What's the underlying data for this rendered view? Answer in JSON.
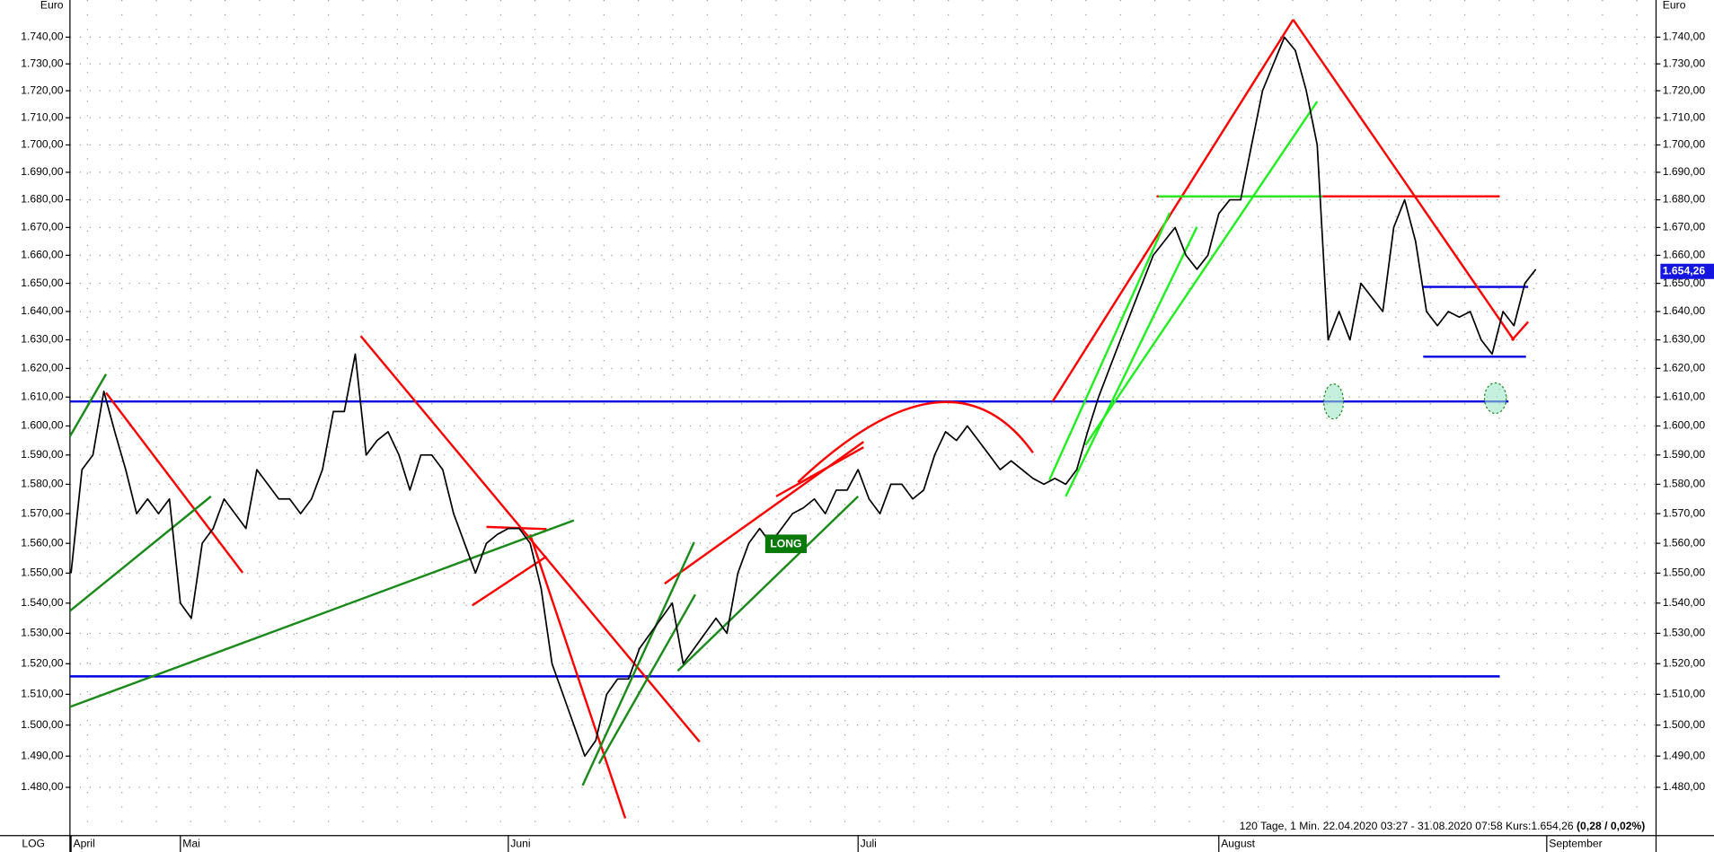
{
  "chart_data": {
    "type": "line",
    "unit": "Euro",
    "scale_label": "LOG",
    "log_scale": true,
    "info": "120 Tage, 1 Min. 22.04.2020 03:27 - 31.08.2020 07:58 Kurs:1.654,26 ",
    "info_change": "(0,28 / 0,02%)",
    "annotation": "LONG",
    "current_value": 1654.26,
    "current_value_label": "1.654,26",
    "color": "#000000",
    "grid": true,
    "ylim": [
      1465,
      1754
    ],
    "yticks": [
      {
        "value": 1480,
        "label": "1.480,00"
      },
      {
        "value": 1490,
        "label": "1.490,00"
      },
      {
        "value": 1500,
        "label": "1.500,00"
      },
      {
        "value": 1510,
        "label": "1.510,00"
      },
      {
        "value": 1520,
        "label": "1.520,00"
      },
      {
        "value": 1530,
        "label": "1.530,00"
      },
      {
        "value": 1540,
        "label": "1.540,00"
      },
      {
        "value": 1550,
        "label": "1.550,00"
      },
      {
        "value": 1560,
        "label": "1.560,00"
      },
      {
        "value": 1570,
        "label": "1.570,00"
      },
      {
        "value": 1580,
        "label": "1.580,00"
      },
      {
        "value": 1590,
        "label": "1.590,00"
      },
      {
        "value": 1600,
        "label": "1.600,00"
      },
      {
        "value": 1610,
        "label": "1.610,00"
      },
      {
        "value": 1620,
        "label": "1.620,00"
      },
      {
        "value": 1630,
        "label": "1.630,00"
      },
      {
        "value": 1640,
        "label": "1.640,00"
      },
      {
        "value": 1650,
        "label": "1.650,00"
      },
      {
        "value": 1660,
        "label": "1.660,00"
      },
      {
        "value": 1670,
        "label": "1.670,00"
      },
      {
        "value": 1680,
        "label": "1.680,00"
      },
      {
        "value": 1690,
        "label": "1.690,00"
      },
      {
        "value": 1700,
        "label": "1.700,00"
      },
      {
        "value": 1710,
        "label": "1.710,00"
      },
      {
        "value": 1720,
        "label": "1.720,00"
      },
      {
        "value": 1730,
        "label": "1.730,00"
      },
      {
        "value": 1740,
        "label": "1.740,00"
      }
    ],
    "categories": [
      "April",
      null,
      null,
      null,
      null,
      null,
      null,
      null,
      null,
      null,
      "Mai",
      null,
      null,
      null,
      null,
      null,
      null,
      null,
      null,
      null,
      null,
      null,
      null,
      null,
      null,
      null,
      null,
      null,
      null,
      null,
      null,
      null,
      null,
      null,
      null,
      null,
      null,
      null,
      null,
      null,
      "Juni",
      null,
      null,
      null,
      null,
      null,
      null,
      null,
      null,
      null,
      null,
      null,
      null,
      null,
      null,
      null,
      null,
      null,
      null,
      null,
      null,
      null,
      null,
      null,
      null,
      null,
      null,
      null,
      null,
      null,
      null,
      null,
      "Juli",
      null,
      null,
      null,
      null,
      null,
      null,
      null,
      null,
      null,
      null,
      null,
      null,
      null,
      null,
      null,
      null,
      null,
      null,
      null,
      null,
      null,
      null,
      null,
      null,
      null,
      null,
      null,
      null,
      null,
      null,
      null,
      null,
      "August",
      null,
      null,
      null,
      null,
      null,
      null,
      null,
      null,
      null,
      null,
      null,
      null,
      null,
      null,
      null,
      null,
      null,
      null,
      null,
      null,
      null,
      null,
      null,
      null,
      null,
      null,
      null,
      null,
      null,
      "September"
    ],
    "values": [
      1550,
      1585,
      1590,
      1612,
      1598,
      1585,
      1570,
      1575,
      1570,
      1575,
      1540,
      1535,
      1560,
      1565,
      1575,
      1570,
      1565,
      1585,
      1580,
      1575,
      1575,
      1570,
      1575,
      1585,
      1605,
      1605,
      1625,
      1590,
      1595,
      1598,
      1590,
      1578,
      1590,
      1590,
      1585,
      1570,
      1560,
      1550,
      1560,
      1563,
      1565,
      1565,
      1560,
      1545,
      1520,
      1510,
      1500,
      1490,
      1495,
      1510,
      1515,
      1515,
      1525,
      1530,
      1535,
      1540,
      1520,
      1525,
      1530,
      1535,
      1530,
      1550,
      1560,
      1565,
      1560,
      1565,
      1570,
      1572,
      1575,
      1570,
      1578,
      1578,
      1585,
      1575,
      1570,
      1580,
      1580,
      1575,
      1578,
      1590,
      1598,
      1595,
      1600,
      1595,
      1590,
      1585,
      1588,
      1585,
      1582,
      1580,
      1582,
      1580,
      1585,
      1598,
      1610,
      1620,
      1630,
      1640,
      1650,
      1660,
      1665,
      1670,
      1660,
      1655,
      1660,
      1675,
      1680,
      1680,
      1700,
      1720,
      1730,
      1740,
      1735,
      1720,
      1700,
      1630,
      1640,
      1630,
      1650,
      1645,
      1640,
      1670,
      1680,
      1665,
      1640,
      1635,
      1640,
      1638,
      1640,
      1630,
      1625,
      1640,
      1635,
      1650,
      1655,
      null
    ]
  }
}
